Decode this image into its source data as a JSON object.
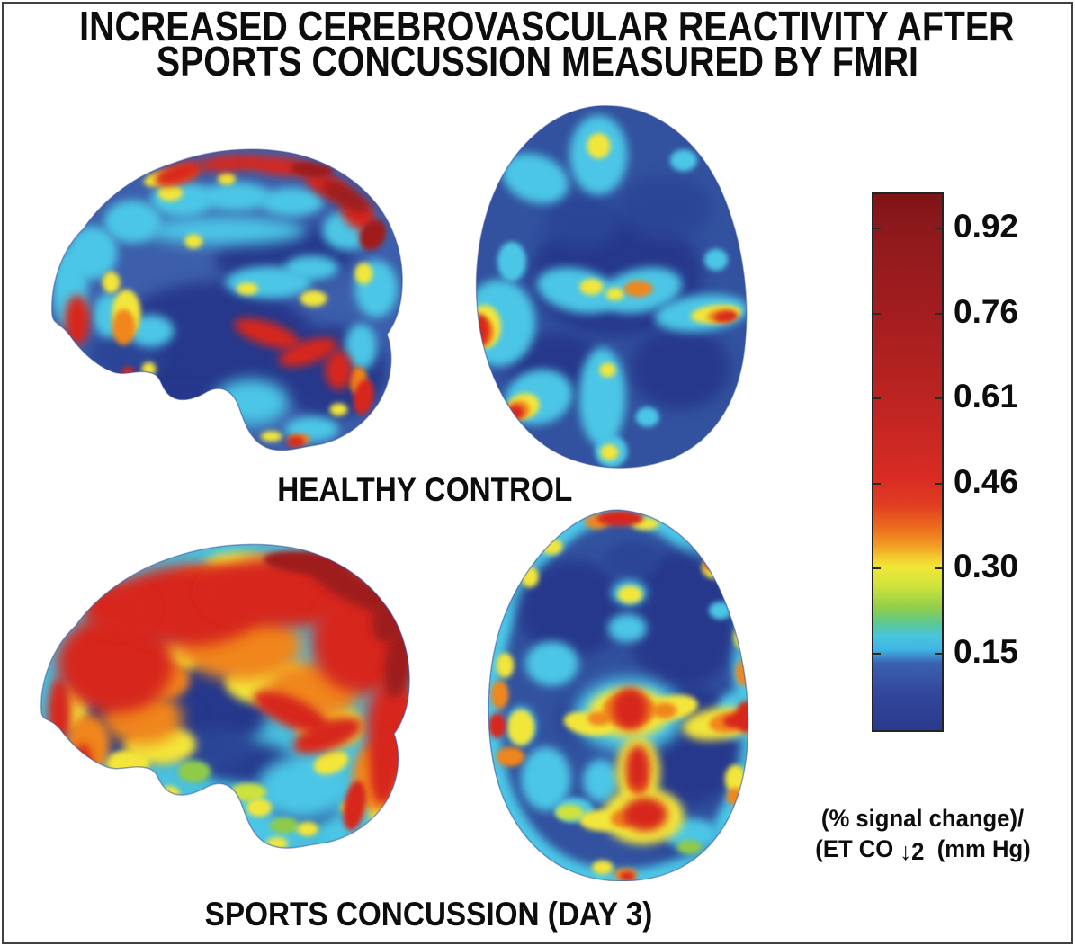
{
  "figure": {
    "title": {
      "line1": "INCREASED CEREBROVASCULAR REACTIVITY AFTER",
      "line2": "SPORTS CONCUSSION MEASURED BY FMRI"
    },
    "panels": [
      {
        "label": "HEALTHY CONTROL"
      },
      {
        "label": "SPORTS CONCUSSION (DAY 3)"
      }
    ],
    "colorbar": {
      "ticks": [
        "0.92",
        "0.76",
        "0.61",
        "0.46",
        "0.30",
        "0.15"
      ],
      "unit_line1": "(% signal change)/",
      "unit_line2_pre": "(ET CO ",
      "unit_line2_arrow": "↓2",
      "unit_line2_post": "  (mm Hg)"
    }
  },
  "chart_data": {
    "type": "heatmap",
    "title": "INCREASED CEREBROVASCULAR REACTIVITY AFTER SPORTS CONCUSSION MEASURED BY FMRI",
    "panels": [
      {
        "label": "HEALTHY CONTROL",
        "views": [
          "sagittal slice",
          "axial slice"
        ],
        "dominant_value_range": [
          0.05,
          0.2
        ],
        "description": "Predominantly low cerebrovascular reactivity (blue) with focal high-reactivity red bands along the superior cortical surface, anterior frontal pole, peri-sylvian region and a few scattered cortical foci."
      },
      {
        "label": "SPORTS CONCUSSION (DAY 3)",
        "views": [
          "sagittal slice",
          "axial slice"
        ],
        "dominant_value_range": [
          0.25,
          0.6
        ],
        "description": "Widespread elevated reactivity (yellow-orange-red) across most of the cortex with residual low-reactivity blue pockets in deep white matter; axial slice shows strong midline thalamic and occipital red foci and a hot cortical rim."
      }
    ],
    "colorbar": {
      "orientation": "vertical",
      "position": "right",
      "tick_values": [
        0.92,
        0.76,
        0.61,
        0.46,
        0.3,
        0.15
      ],
      "value_range": [
        0.0,
        1.0
      ],
      "unit": "(% signal change)/(ET CO2) (mm Hg)",
      "colormap": "jet (dark red > red > orange > yellow > green > cyan > blue > dark blue)",
      "colormap_hex_top_to_bottom": [
        "#7f1316",
        "#b92421",
        "#d92b24",
        "#ec6a1e",
        "#f2e636",
        "#94ce49",
        "#47c5e0",
        "#3a62b0",
        "#2a3a8c"
      ]
    }
  }
}
